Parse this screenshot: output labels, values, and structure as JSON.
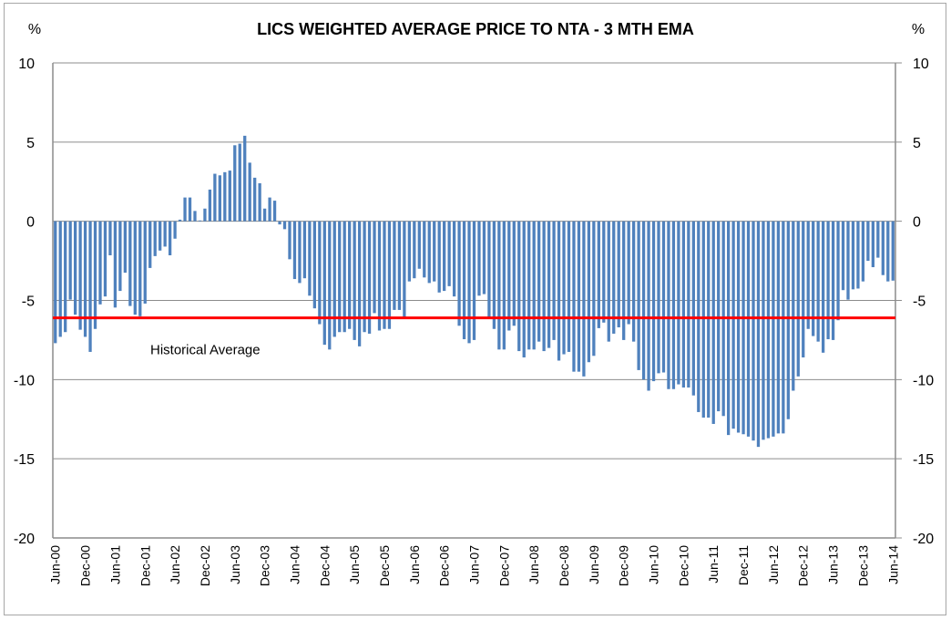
{
  "chart_data": {
    "type": "bar",
    "title": "LICS WEIGHTED AVERAGE PRICE TO NTA - 3 MTH EMA",
    "ylabel_left": "%",
    "ylabel_right": "%",
    "xlabel": "",
    "ylim": [
      -20,
      10
    ],
    "yticks": [
      10,
      5,
      0,
      -5,
      -10,
      -15,
      -20
    ],
    "ytick_labels": [
      "10",
      "5",
      "0",
      "-5",
      "-10",
      "-15",
      "-20"
    ],
    "grid": true,
    "frequency": "monthly",
    "x_start": "Jun-00",
    "x_end": "Jun-14",
    "xtick_labels": [
      "Jun-00",
      "Dec-00",
      "Jun-01",
      "Dec-01",
      "Jun-02",
      "Dec-02",
      "Jun-03",
      "Dec-03",
      "Jun-04",
      "Dec-04",
      "Jun-05",
      "Dec-05",
      "Jun-06",
      "Dec-06",
      "Jun-07",
      "Dec-07",
      "Jun-08",
      "Dec-08",
      "Jun-09",
      "Dec-09",
      "Jun-10",
      "Dec-10",
      "Jun-11",
      "Dec-11",
      "Jun-12",
      "Dec-12",
      "Jun-13",
      "Dec-13",
      "Jun-14"
    ],
    "xtick_every_n_months": 6,
    "series": [
      {
        "name": "LICs weighted average price to NTA (3 mth EMA)",
        "color": "#4F81BD",
        "values": [
          -7.7,
          -7.3,
          -7.0,
          -4.95,
          -5.9,
          -6.85,
          -7.3,
          -8.25,
          -6.8,
          -5.25,
          -4.75,
          -2.15,
          -5.45,
          -4.4,
          -3.25,
          -5.35,
          -5.9,
          -6.0,
          -5.2,
          -2.95,
          -2.2,
          -1.85,
          -1.6,
          -2.15,
          -1.1,
          0.1,
          1.5,
          1.5,
          0.65,
          0.05,
          0.8,
          2.0,
          3.0,
          2.9,
          3.1,
          3.2,
          4.8,
          4.9,
          5.4,
          3.7,
          2.75,
          2.4,
          0.8,
          1.5,
          1.3,
          -0.2,
          -0.5,
          -2.4,
          -3.65,
          -3.9,
          -3.6,
          -4.7,
          -5.5,
          -6.5,
          -7.8,
          -8.1,
          -7.3,
          -7.0,
          -7.0,
          -6.8,
          -7.5,
          -7.9,
          -7.0,
          -7.1,
          -5.8,
          -6.9,
          -6.8,
          -6.8,
          -5.6,
          -5.6,
          -6.1,
          -3.8,
          -3.6,
          -3.0,
          -3.55,
          -3.9,
          -3.8,
          -4.5,
          -4.4,
          -4.1,
          -4.75,
          -6.6,
          -7.45,
          -7.7,
          -7.5,
          -4.7,
          -4.6,
          -6.1,
          -6.8,
          -8.1,
          -8.1,
          -6.9,
          -6.6,
          -8.2,
          -8.6,
          -8.1,
          -8.1,
          -7.6,
          -8.2,
          -8.0,
          -7.5,
          -8.8,
          -8.4,
          -8.25,
          -9.5,
          -9.5,
          -9.8,
          -8.9,
          -8.5,
          -6.75,
          -6.4,
          -7.6,
          -7.1,
          -6.7,
          -7.5,
          -6.5,
          -7.6,
          -9.4,
          -10.0,
          -10.7,
          -10.1,
          -9.6,
          -9.55,
          -10.6,
          -10.6,
          -10.3,
          -10.5,
          -10.5,
          -11.0,
          -12.05,
          -12.4,
          -12.4,
          -12.8,
          -12.0,
          -12.3,
          -13.5,
          -13.1,
          -13.35,
          -13.45,
          -13.6,
          -13.85,
          -14.25,
          -13.8,
          -13.7,
          -13.6,
          -13.4,
          -13.4,
          -12.5,
          -10.7,
          -9.8,
          -8.6,
          -6.8,
          -7.25,
          -7.6,
          -8.3,
          -7.45,
          -7.5,
          -6.25,
          -4.35,
          -4.95,
          -4.3,
          -4.25,
          -3.8,
          -2.5,
          -2.9,
          -2.3,
          -3.4,
          -3.8,
          -3.75
        ]
      }
    ],
    "reference_line": {
      "name": "Historical Average",
      "value": -6.1,
      "color": "#FF0000",
      "label": "Historical Average",
      "x_span": [
        "Jun-00",
        "Jun-14"
      ]
    },
    "legend": "none"
  }
}
